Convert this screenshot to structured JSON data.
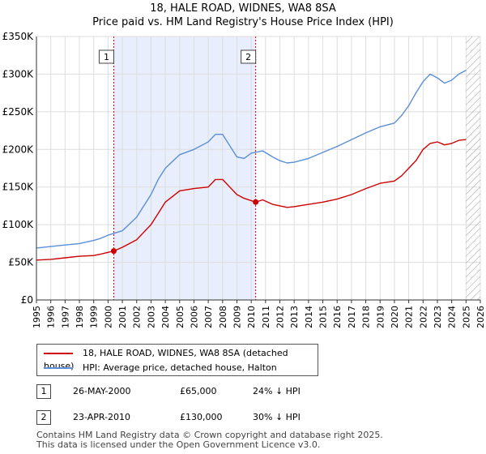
{
  "chart_data": {
    "type": "line",
    "title": "18, HALE ROAD, WIDNES, WA8 8SA",
    "subtitle": "Price paid vs. HM Land Registry's House Price Index (HPI)",
    "x_ticks": [
      "1995",
      "1996",
      "1997",
      "1998",
      "1999",
      "2000",
      "2001",
      "2002",
      "2003",
      "2004",
      "2005",
      "2006",
      "2007",
      "2008",
      "2009",
      "2010",
      "2011",
      "2012",
      "2013",
      "2014",
      "2015",
      "2016",
      "2017",
      "2018",
      "2019",
      "2020",
      "2021",
      "2022",
      "2023",
      "2024",
      "2025",
      "2026"
    ],
    "y_ticks": [
      "£0",
      "£50K",
      "£100K",
      "£150K",
      "£200K",
      "£250K",
      "£300K",
      "£350K"
    ],
    "xlim": [
      1995,
      2026
    ],
    "ylim": [
      0,
      350000
    ],
    "grid": true,
    "series": [
      {
        "name": "18, HALE ROAD, WIDNES, WA8 8SA (detached house)",
        "color": "#cc0000",
        "x": [
          1995.0,
          1996.0,
          1997.0,
          1998.0,
          1999.0,
          1999.5,
          2000.4,
          2001.0,
          2002.0,
          2003.0,
          2003.5,
          2004.0,
          2005.0,
          2006.0,
          2007.0,
          2007.5,
          2008.0,
          2008.5,
          2009.0,
          2009.5,
          2010.31,
          2010.8,
          2011.5,
          2012.0,
          2012.5,
          2013.0,
          2014.0,
          2015.0,
          2016.0,
          2017.0,
          2018.0,
          2019.0,
          2020.0,
          2020.5,
          2021.0,
          2021.5,
          2022.0,
          2022.5,
          2023.0,
          2023.5,
          2024.0,
          2024.5,
          2025.0
        ],
        "y": [
          53000,
          54000,
          56000,
          58000,
          59000,
          61000,
          65000,
          70000,
          80000,
          100000,
          115000,
          130000,
          145000,
          148000,
          150000,
          160000,
          160000,
          150000,
          140000,
          135000,
          130000,
          133000,
          127000,
          125000,
          123000,
          124000,
          127000,
          130000,
          134000,
          140000,
          148000,
          155000,
          158000,
          165000,
          175000,
          185000,
          200000,
          208000,
          210000,
          206000,
          208000,
          212000,
          213000
        ]
      },
      {
        "name": "HPI: Average price, detached house, Halton",
        "color": "#5b8ed6",
        "x": [
          1995.0,
          1996.0,
          1997.0,
          1998.0,
          1999.0,
          1999.5,
          2000.0,
          2001.0,
          2002.0,
          2003.0,
          2003.5,
          2004.0,
          2005.0,
          2006.0,
          2007.0,
          2007.5,
          2008.0,
          2008.5,
          2009.0,
          2009.5,
          2010.0,
          2010.8,
          2011.5,
          2012.0,
          2012.5,
          2013.0,
          2014.0,
          2015.0,
          2016.0,
          2017.0,
          2018.0,
          2019.0,
          2020.0,
          2020.5,
          2021.0,
          2021.5,
          2022.0,
          2022.5,
          2023.0,
          2023.5,
          2024.0,
          2024.5,
          2025.0
        ],
        "y": [
          69000,
          71000,
          73000,
          75000,
          79000,
          82000,
          86000,
          92000,
          110000,
          140000,
          160000,
          175000,
          193000,
          200000,
          210000,
          220000,
          220000,
          205000,
          190000,
          188000,
          195000,
          198000,
          190000,
          185000,
          182000,
          183000,
          188000,
          196000,
          204000,
          213000,
          222000,
          230000,
          235000,
          245000,
          258000,
          275000,
          290000,
          300000,
          295000,
          288000,
          292000,
          300000,
          305000
        ]
      }
    ],
    "annotations": [
      {
        "label": "1",
        "x": 2000.4
      },
      {
        "label": "2",
        "x": 2010.31
      }
    ],
    "shaded_region": [
      2000.4,
      2010.31
    ],
    "hatch_from": 2025.0
  },
  "legend": {
    "property_label": "18, HALE ROAD, WIDNES, WA8 8SA (detached house)",
    "hpi_label": "HPI: Average price, detached house, Halton"
  },
  "transactions": [
    {
      "num": "1",
      "date": "26-MAY-2000",
      "price": "£65,000",
      "hpi": "24% ↓ HPI",
      "x": 2000.4,
      "value": 65000
    },
    {
      "num": "2",
      "date": "23-APR-2010",
      "price": "£130,000",
      "hpi": "30% ↓ HPI",
      "x": 2010.31,
      "value": 130000
    }
  ],
  "footer": {
    "line1": "Contains HM Land Registry data © Crown copyright and database right 2025.",
    "line2": "This data is licensed under the Open Government Licence v3.0."
  }
}
